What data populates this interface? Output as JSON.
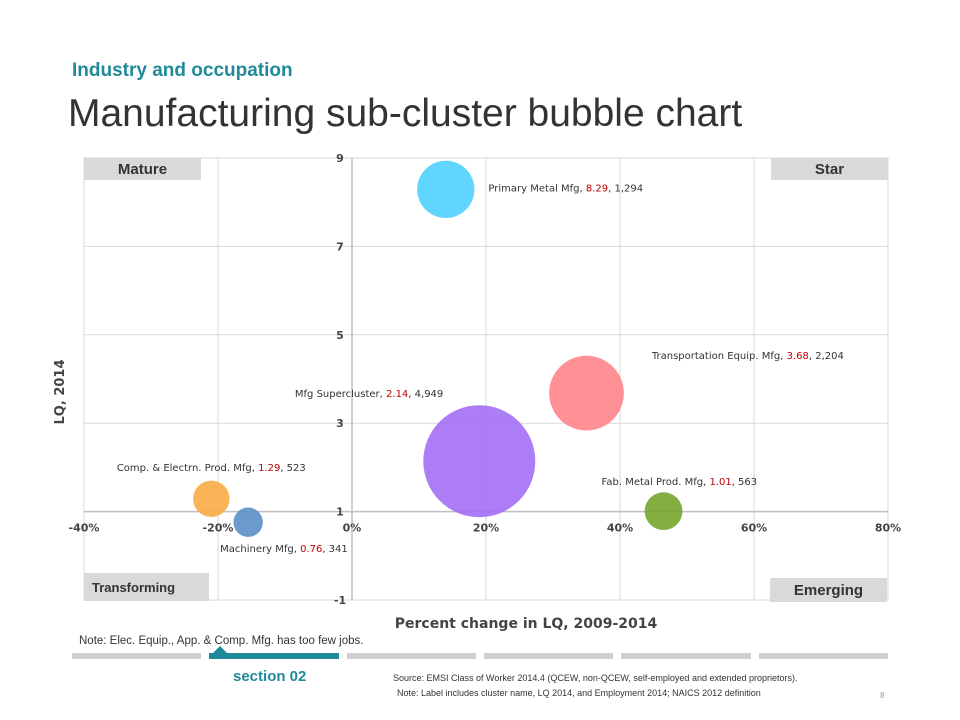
{
  "header": {
    "section_label": "Industry and occupation",
    "title": "Manufacturing sub-cluster bubble chart"
  },
  "quadrants": {
    "top_left": "Mature",
    "top_right": "Star",
    "bottom_left": "Transforming",
    "bottom_right": "Emerging"
  },
  "chart_data": {
    "type": "scatter",
    "subtype": "bubble",
    "title": "",
    "xlabel": "Percent change in LQ, 2009-2014",
    "ylabel": "LQ, 2014",
    "xlim": [
      -0.4,
      0.8
    ],
    "ylim": [
      -1,
      9
    ],
    "x_ticks": [
      -0.4,
      -0.2,
      0,
      0.2,
      0.4,
      0.6,
      0.8
    ],
    "x_tick_labels": [
      "-40%",
      "-20%",
      "0%",
      "20%",
      "40%",
      "60%",
      "80%"
    ],
    "y_ticks": [
      -1,
      1,
      3,
      5,
      7,
      9
    ],
    "y_tick_labels": [
      "-1",
      "1",
      "3",
      "5",
      "7",
      "9"
    ],
    "grid": true,
    "label_value_color": "#c00000",
    "series": [
      {
        "label": "Primary Metal Mfg, ",
        "lq_text": "8.29",
        "emp_text": ", 1,294",
        "x": 0.14,
        "y": 8.29,
        "size": 1294,
        "color": "#4fd0ff"
      },
      {
        "label": "Transportation Equip. Mfg, ",
        "lq_text": "3.68",
        "emp_text": ", 2,204",
        "x": 0.35,
        "y": 3.68,
        "size": 2204,
        "color": "#ff858b"
      },
      {
        "label": "Mfg Supercluster, ",
        "lq_text": "2.14",
        "emp_text": ", 4,949",
        "x": 0.19,
        "y": 2.14,
        "size": 4949,
        "color": "#a46ff7"
      },
      {
        "label": "Comp. & Electrn. Prod. Mfg, ",
        "lq_text": "1.29",
        "emp_text": ", 523",
        "x": -0.21,
        "y": 1.29,
        "size": 523,
        "color": "#f9ac45"
      },
      {
        "label": "Machinery Mfg, ",
        "lq_text": "0.76",
        "emp_text": ", 341",
        "x": -0.155,
        "y": 0.76,
        "size": 341,
        "color": "#5b8fc7"
      },
      {
        "label": "Fab. Metal Prod. Mfg, ",
        "lq_text": "1.01",
        "emp_text": ", 563",
        "x": 0.465,
        "y": 1.01,
        "size": 563,
        "color": "#74a62b"
      }
    ]
  },
  "footer": {
    "note_top": "Note: Elec. Equip., App. & Comp. Mfg. has too few jobs.",
    "section": "section 02",
    "source": "Source: EMSI Class of Worker 2014.4 (QCEW, non-QCEW, self-employed and extended proprietors).",
    "note": "Note: Label includes cluster name, LQ 2014, and Employment 2014; NAICS 2012 definition",
    "page_number": "8"
  },
  "nav": {
    "segments": 6,
    "active_index": 1
  }
}
